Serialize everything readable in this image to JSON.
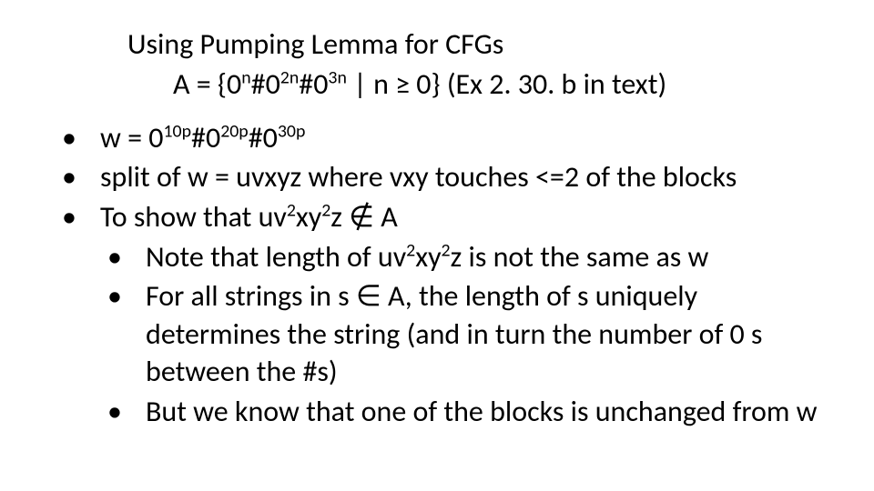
{
  "slide": {
    "title": "Using Pumping Lemma for CFGs",
    "subtitle_prefix": "A = {0",
    "subtitle_sup1": "n",
    "subtitle_mid1": "#0",
    "subtitle_sup2": "2n",
    "subtitle_mid2": "#0",
    "subtitle_sup3": "3n",
    "subtitle_suffix": " | n ≥ 0} (Ex 2. 30. b in text)",
    "bullets": {
      "b1_prefix": "w = 0",
      "b1_sup1": "10p",
      "b1_mid1": "#0",
      "b1_sup2": "20p",
      "b1_mid2": "#0",
      "b1_sup3": "30p",
      "b2": "split of w = uvxyz where vxy touches <=2 of the blocks",
      "b3_prefix": "To show that uv",
      "b3_sup1": "2",
      "b3_mid1": "xy",
      "b3_sup2": "2",
      "b3_mid2": "z ",
      "b3_notin": "∉",
      "b3_suffix": " A",
      "sb1_prefix": "Note that length of uv",
      "sb1_sup1": "2",
      "sb1_mid1": "xy",
      "sb1_sup2": "2",
      "sb1_suffix": "z is not the same as w",
      "sb2": "For all strings in s ∈ A, the length of s uniquely determines the string (and in turn the number of 0 s between the #s)",
      "sb3": "But we know that one of the blocks is unchanged from w"
    }
  },
  "style": {
    "bg_color": "#ffffff",
    "text_color": "#000000",
    "title_fontsize": 32,
    "body_fontsize": 32,
    "font_family": "Calibri"
  }
}
